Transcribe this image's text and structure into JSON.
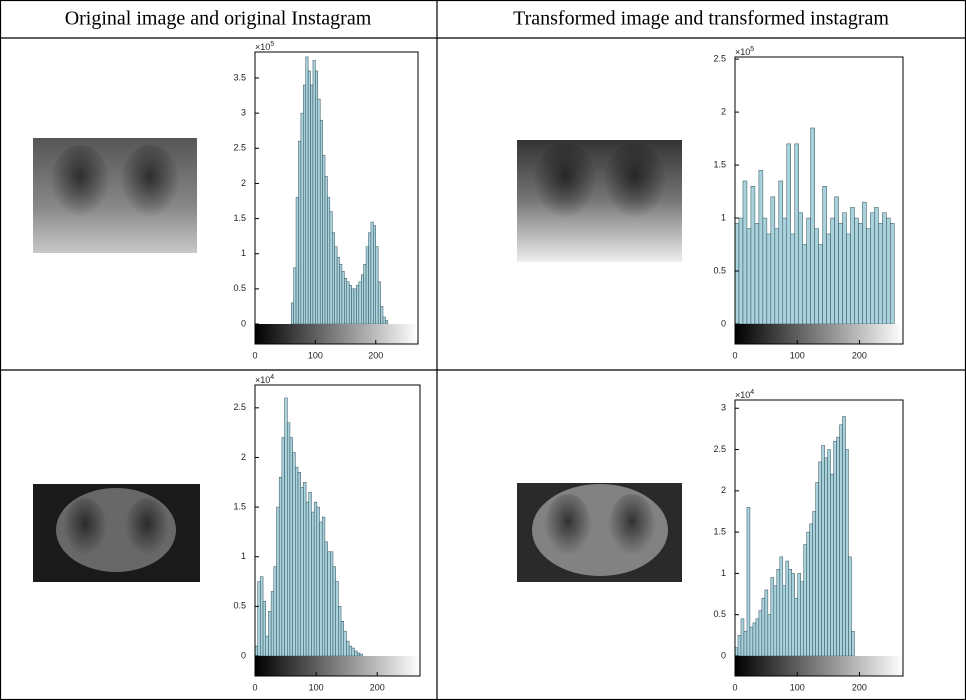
{
  "table": {
    "headers": [
      "Original image and original Instagram",
      "Transformed image and transformed instagram"
    ]
  },
  "chart_data": [
    {
      "type": "histogram",
      "color": "#a9d2dd",
      "y_scale": {
        "base": "×10",
        "exponent": 5
      },
      "bins": [
        60,
        64,
        68,
        72,
        76,
        80,
        84,
        88,
        92,
        96,
        100,
        104,
        108,
        112,
        116,
        120,
        124,
        128,
        132,
        136,
        140,
        144,
        148,
        152,
        156,
        160,
        164,
        168,
        172,
        176,
        180,
        184,
        188,
        192,
        196,
        200,
        204,
        208,
        212,
        216,
        220
      ],
      "values": [
        0.3,
        0.8,
        1.8,
        2.6,
        3.0,
        3.4,
        3.8,
        3.6,
        3.4,
        3.75,
        3.6,
        3.2,
        2.9,
        2.4,
        2.1,
        1.8,
        1.6,
        1.3,
        1.1,
        0.95,
        0.85,
        0.75,
        0.65,
        0.6,
        0.55,
        0.5,
        0.5,
        0.55,
        0.6,
        0.7,
        0.85,
        1.1,
        1.3,
        1.45,
        1.4,
        1.1,
        0.6,
        0.25,
        0.1,
        0.05
      ],
      "xlim": [
        0,
        270
      ],
      "xticks": [
        0,
        100,
        200
      ],
      "ylim": [
        0,
        3.87
      ],
      "yticks": [
        0,
        0.5,
        1,
        1.5,
        2,
        2.5,
        3,
        3.5
      ]
    },
    {
      "type": "histogram",
      "color": "#a9d2dd",
      "y_scale": {
        "base": "×10",
        "exponent": 5
      },
      "bins": [
        0,
        6.4,
        12.8,
        19.2,
        25.6,
        32,
        38.4,
        44.8,
        51.2,
        57.6,
        64,
        70.4,
        76.8,
        83.2,
        89.6,
        96,
        102.4,
        108.8,
        115.2,
        121.6,
        128,
        134.4,
        140.8,
        147.2,
        153.6,
        160,
        166.4,
        172.8,
        179.2,
        185.6,
        192,
        198.4,
        204.8,
        211.2,
        217.6,
        224,
        230.4,
        236.8,
        243.2,
        249.6,
        256
      ],
      "values": [
        0.95,
        1.0,
        1.35,
        0.9,
        1.3,
        0.95,
        1.45,
        1.0,
        0.85,
        1.2,
        0.9,
        1.35,
        1.0,
        1.7,
        0.85,
        1.7,
        1.05,
        0.75,
        1.0,
        1.85,
        0.9,
        0.75,
        1.3,
        0.85,
        1.0,
        1.2,
        0.95,
        1.05,
        0.85,
        1.1,
        1.0,
        0.95,
        1.15,
        0.9,
        1.05,
        1.1,
        0.95,
        1.05,
        1.0,
        0.95
      ],
      "xlim": [
        0,
        270
      ],
      "xticks": [
        0,
        100,
        200
      ],
      "ylim": [
        0,
        2.52
      ],
      "yticks": [
        0,
        0.5,
        1,
        1.5,
        2,
        2.5
      ]
    },
    {
      "type": "histogram",
      "color": "#a9d2dd",
      "y_scale": {
        "base": "×10",
        "exponent": 4
      },
      "bins": [
        0,
        4.4,
        8.8,
        13.2,
        17.6,
        22,
        26.4,
        30.8,
        35.2,
        39.6,
        44,
        48.4,
        52.8,
        57.2,
        61.6,
        66,
        70.4,
        74.8,
        79.2,
        83.6,
        88,
        92.4,
        96.8,
        101.2,
        105.6,
        110,
        114.4,
        118.8,
        123.2,
        127.6,
        132,
        136.4,
        140.8,
        145.2,
        149.6,
        154,
        158.4,
        162.8,
        167.2,
        171.6,
        176
      ],
      "values": [
        0.1,
        0.75,
        0.8,
        0.55,
        0.2,
        0.45,
        0.65,
        0.9,
        1.5,
        1.8,
        2.2,
        2.6,
        2.35,
        2.2,
        2.05,
        1.9,
        1.85,
        1.7,
        1.75,
        1.55,
        1.65,
        1.45,
        1.55,
        1.5,
        1.35,
        1.4,
        1.15,
        1.05,
        1.05,
        0.9,
        0.75,
        0.5,
        0.35,
        0.25,
        0.15,
        0.1,
        0.08,
        0.05,
        0.03,
        0.02
      ],
      "xlim": [
        0,
        270
      ],
      "xticks": [
        0,
        100,
        200
      ],
      "ylim": [
        0,
        2.73
      ],
      "yticks": [
        0,
        0.5,
        1,
        1.5,
        2,
        2.5
      ]
    },
    {
      "type": "histogram",
      "color": "#a9d2dd",
      "y_scale": {
        "base": "×10",
        "exponent": 4
      },
      "bins": [
        0,
        4.8,
        9.6,
        14.4,
        19.2,
        24,
        28.8,
        33.6,
        38.4,
        43.2,
        48,
        52.8,
        57.6,
        62.4,
        67.2,
        72,
        76.8,
        81.6,
        86.4,
        91.2,
        96,
        100.8,
        105.6,
        110.4,
        115.2,
        120,
        124.8,
        129.6,
        134.4,
        139.2,
        144,
        148.8,
        153.6,
        158.4,
        163.2,
        168,
        172.8,
        177.6,
        182.4,
        187.2,
        192
      ],
      "values": [
        0.1,
        0.25,
        0.45,
        0.3,
        1.8,
        0.35,
        0.4,
        0.45,
        0.55,
        0.7,
        0.8,
        0.5,
        0.95,
        0.85,
        1.05,
        1.2,
        0.85,
        1.15,
        1.05,
        1.0,
        0.7,
        1.0,
        0.9,
        1.35,
        1.5,
        1.6,
        1.75,
        2.1,
        2.35,
        2.55,
        2.4,
        2.5,
        2.2,
        2.6,
        2.65,
        2.8,
        2.9,
        2.5,
        1.2,
        0.3
      ],
      "xlim": [
        0,
        270
      ],
      "xticks": [
        0,
        100,
        200
      ],
      "ylim": [
        0,
        3.1
      ],
      "yticks": [
        0,
        0.5,
        1,
        1.5,
        2,
        2.5,
        3
      ]
    }
  ]
}
